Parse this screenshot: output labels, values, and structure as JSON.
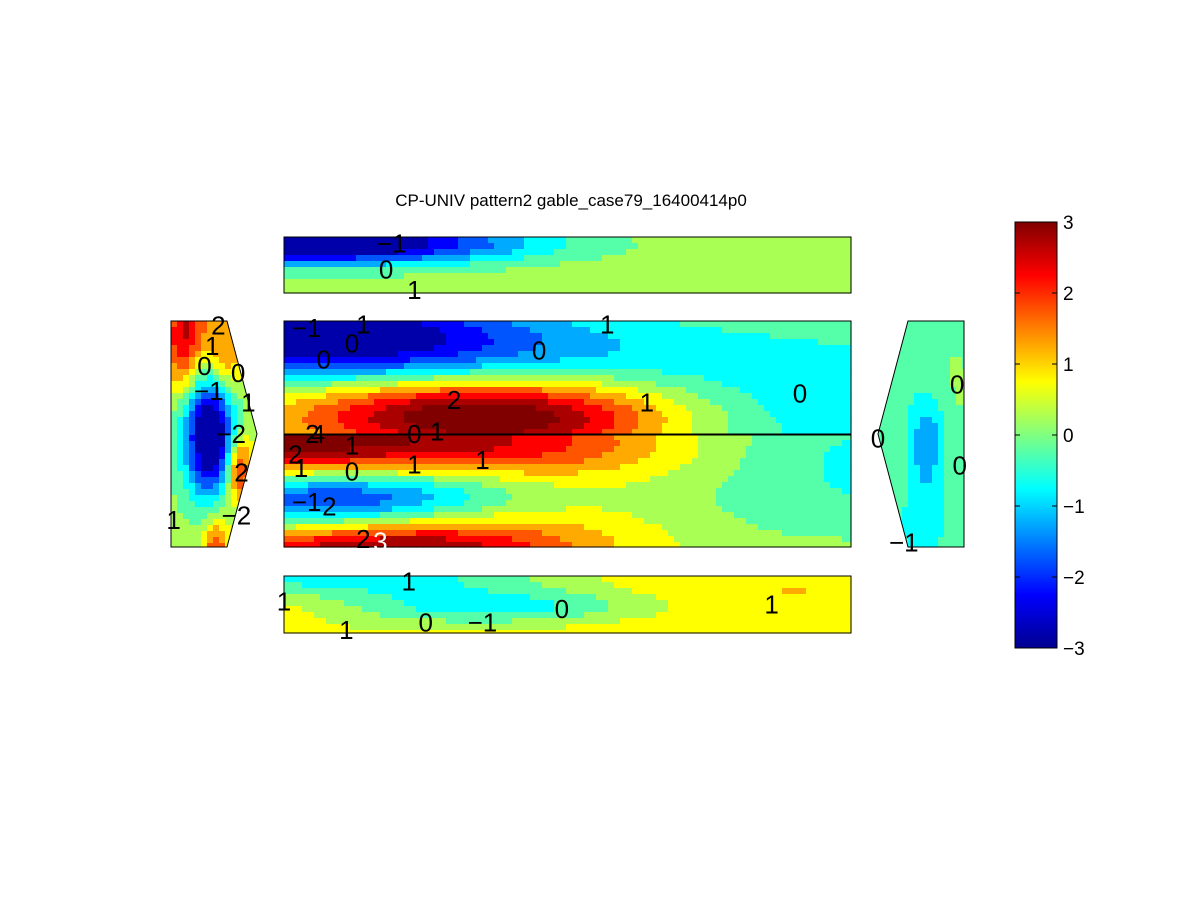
{
  "chart_data": {
    "type": "heatmap",
    "title": "CP-UNIV pattern2 gable_case79_16400414p0",
    "colormap": "jet",
    "clim": [
      -3,
      3
    ],
    "colorbar": {
      "ticks": [
        3,
        2,
        1,
        0,
        -1,
        -2,
        -3
      ],
      "tick_labels": [
        "3",
        "2",
        "1",
        "0",
        "−1",
        "−2",
        "−3"
      ]
    },
    "panels": [
      {
        "name": "top-strip",
        "base_value": 0.6,
        "blobs": [
          {
            "u": 0.0,
            "v": 0.1,
            "value": -3.0,
            "spread": 0.05
          },
          {
            "u": 0.18,
            "v": 0.1,
            "value": -1.6,
            "spread": 0.07
          },
          {
            "u": 0.08,
            "v": 0.6,
            "value": -0.4,
            "spread": 0.08
          },
          {
            "u": 0.9,
            "v": 0.5,
            "value": -0.5,
            "spread": 0.25
          },
          {
            "u": 0.55,
            "v": 0.5,
            "value": 0.3,
            "spread": 0.2
          }
        ],
        "contour_labels": [
          {
            "text": "−1",
            "u": 0.19,
            "v": 0.12
          },
          {
            "text": "0",
            "u": 0.18,
            "v": 0.58
          },
          {
            "text": "1",
            "u": 0.23,
            "v": 0.95
          }
        ]
      },
      {
        "name": "roof-upper",
        "base_value": 0.4,
        "blobs": [
          {
            "u": 0.0,
            "v": 0.05,
            "value": -2.4,
            "spread": 0.05
          },
          {
            "u": 0.08,
            "v": 0.25,
            "value": -1.0,
            "spread": 0.07
          },
          {
            "u": 0.18,
            "v": 0.4,
            "value": -0.7,
            "spread": 0.06
          },
          {
            "u": 0.3,
            "v": 0.1,
            "value": -0.4,
            "spread": 0.06
          },
          {
            "u": 0.3,
            "v": 0.75,
            "value": 2.4,
            "spread": 0.05
          },
          {
            "u": 0.42,
            "v": 0.95,
            "value": 1.8,
            "spread": 0.05
          },
          {
            "u": 0.46,
            "v": 0.25,
            "value": -0.4,
            "spread": 0.1
          },
          {
            "u": 0.6,
            "v": 0.7,
            "value": 0.7,
            "spread": 0.06
          },
          {
            "u": 0.9,
            "v": 0.8,
            "value": -1.4,
            "spread": 0.16
          },
          {
            "u": 0.8,
            "v": 0.3,
            "value": -0.4,
            "spread": 0.15
          }
        ],
        "contour_labels": [
          {
            "text": "−1",
            "u": 0.04,
            "v": 0.06
          },
          {
            "text": "1",
            "u": 0.14,
            "v": 0.03
          },
          {
            "text": "0",
            "u": 0.12,
            "v": 0.2
          },
          {
            "text": "0",
            "u": 0.07,
            "v": 0.34
          },
          {
            "text": "0",
            "u": 0.45,
            "v": 0.26
          },
          {
            "text": "1",
            "u": 0.57,
            "v": 0.03
          },
          {
            "text": "2",
            "u": 0.3,
            "v": 0.7
          },
          {
            "text": "1",
            "u": 0.64,
            "v": 0.72
          },
          {
            "text": "0",
            "u": 0.91,
            "v": 0.64
          },
          {
            "text": "0",
            "u": 0.23,
            "v": 1.0
          },
          {
            "text": "1",
            "u": 0.27,
            "v": 0.98
          },
          {
            "text": "4",
            "u": 0.06,
            "v": 1.0
          },
          {
            "text": "2",
            "u": 0.05,
            "v": 1.0
          }
        ]
      },
      {
        "name": "roof-lower",
        "base_value": 0.55,
        "blobs": [
          {
            "u": 0.0,
            "v": 0.1,
            "value": 2.6,
            "spread": 0.05
          },
          {
            "u": 0.08,
            "v": 0.6,
            "value": -2.8,
            "spread": 0.05
          },
          {
            "u": 0.17,
            "v": 0.55,
            "value": -0.5,
            "spread": 0.04
          },
          {
            "u": 0.17,
            "v": 1.0,
            "value": 2.9,
            "spread": 0.05
          },
          {
            "u": 0.42,
            "v": 0.05,
            "value": 1.8,
            "spread": 0.05
          },
          {
            "u": 0.65,
            "v": 0.3,
            "value": 0.9,
            "spread": 0.07
          },
          {
            "u": 0.88,
            "v": 0.2,
            "value": -1.4,
            "spread": 0.15
          },
          {
            "u": 0.85,
            "v": 0.7,
            "value": -0.5,
            "spread": 0.15
          },
          {
            "u": 0.42,
            "v": 0.75,
            "value": 0.7,
            "spread": 0.07
          }
        ],
        "contour_labels": [
          {
            "text": "2",
            "u": 0.02,
            "v": 0.18
          },
          {
            "text": "1",
            "u": 0.03,
            "v": 0.3
          },
          {
            "text": "1",
            "u": 0.12,
            "v": 0.1
          },
          {
            "text": "0",
            "u": 0.12,
            "v": 0.33
          },
          {
            "text": "1",
            "u": 0.23,
            "v": 0.27
          },
          {
            "text": "1",
            "u": 0.35,
            "v": 0.23
          },
          {
            "text": "−1",
            "u": 0.04,
            "v": 0.6
          },
          {
            "text": "2",
            "u": 0.08,
            "v": 0.64
          },
          {
            "text": "2",
            "u": 0.14,
            "v": 0.93
          },
          {
            "text": "3",
            "u": 0.17,
            "v": 0.95
          }
        ]
      },
      {
        "name": "bottom-strip",
        "base_value": 0.5,
        "blobs": [
          {
            "u": 0.12,
            "v": 0.0,
            "value": -1.5,
            "spread": 0.06
          },
          {
            "u": 0.0,
            "v": 0.5,
            "value": 0.6,
            "spread": 0.05
          },
          {
            "u": 0.36,
            "v": 0.5,
            "value": -1.8,
            "spread": 0.05
          },
          {
            "u": 0.27,
            "v": 0.6,
            "value": -0.2,
            "spread": 0.07
          },
          {
            "u": 0.7,
            "v": 0.5,
            "value": 0.8,
            "spread": 0.2
          },
          {
            "u": 0.98,
            "v": 0.6,
            "value": -0.2,
            "spread": 0.05
          }
        ],
        "contour_labels": [
          {
            "text": "1",
            "u": 0.0,
            "v": 0.45
          },
          {
            "text": "1",
            "u": 0.22,
            "v": 0.1
          },
          {
            "text": "1",
            "u": 0.11,
            "v": 0.95
          },
          {
            "text": "0",
            "u": 0.25,
            "v": 0.82
          },
          {
            "text": "−1",
            "u": 0.35,
            "v": 0.82
          },
          {
            "text": "0",
            "u": 0.49,
            "v": 0.58
          },
          {
            "text": "1",
            "u": 0.86,
            "v": 0.5
          }
        ]
      },
      {
        "name": "left-gable",
        "base_value": 0.4,
        "blobs": [
          {
            "u": 0.45,
            "v": 0.5,
            "value": -3.0,
            "spread": 0.03
          },
          {
            "u": 0.35,
            "v": 0.5,
            "value": -1.2,
            "spread": 0.07
          },
          {
            "u": 0.2,
            "v": 0.0,
            "value": 1.8,
            "spread": 0.03
          },
          {
            "u": 0.6,
            "v": 0.15,
            "value": 1.4,
            "spread": 0.02
          },
          {
            "u": 0.75,
            "v": 0.65,
            "value": 2.2,
            "spread": 0.01
          },
          {
            "u": 0.5,
            "v": 1.0,
            "value": 1.8,
            "spread": 0.01
          },
          {
            "u": 0.1,
            "v": 0.15,
            "value": 1.0,
            "spread": 0.02
          }
        ],
        "contour_labels": [
          {
            "text": "2",
            "u": 0.55,
            "v": 0.02
          },
          {
            "text": "1",
            "u": 0.48,
            "v": 0.11
          },
          {
            "text": "0",
            "u": 0.39,
            "v": 0.2
          },
          {
            "text": "0",
            "u": 0.78,
            "v": 0.23
          },
          {
            "text": "−1",
            "u": 0.44,
            "v": 0.31
          },
          {
            "text": "1",
            "u": 0.9,
            "v": 0.36
          },
          {
            "text": "−2",
            "u": 0.7,
            "v": 0.5
          },
          {
            "text": "2",
            "u": 0.82,
            "v": 0.67
          },
          {
            "text": "1",
            "u": 0.03,
            "v": 0.88
          },
          {
            "text": "−2",
            "u": 0.76,
            "v": 0.86
          }
        ]
      },
      {
        "name": "right-gable",
        "base_value": -0.2,
        "blobs": [
          {
            "u": 0.55,
            "v": 0.52,
            "value": -1.2,
            "spread": 0.02
          },
          {
            "u": 0.5,
            "v": 0.9,
            "value": -0.6,
            "spread": 0.03
          },
          {
            "u": 0.85,
            "v": 0.3,
            "value": 0.25,
            "spread": 0.05
          }
        ],
        "contour_labels": [
          {
            "text": "0",
            "u": 0.92,
            "v": 0.28
          },
          {
            "text": "0",
            "u": 0.0,
            "v": 0.52
          },
          {
            "text": "0",
            "u": 0.95,
            "v": 0.64
          },
          {
            "text": "−1",
            "u": 0.3,
            "v": 0.98
          }
        ]
      }
    ]
  }
}
